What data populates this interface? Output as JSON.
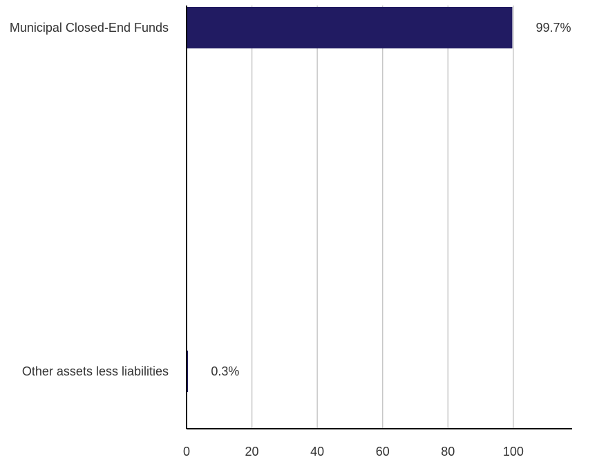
{
  "chart_data": {
    "type": "bar",
    "orientation": "horizontal",
    "categories": [
      "Municipal Closed-End Funds",
      "Other assets less liabilities"
    ],
    "values": [
      99.7,
      0.3
    ],
    "value_labels": [
      "99.7%",
      "0.3%"
    ],
    "xlim": [
      0,
      118
    ],
    "xticks": [
      0,
      20,
      40,
      60,
      80,
      100
    ],
    "xtick_labels": [
      "0",
      "20",
      "40",
      "60",
      "80",
      "100"
    ],
    "grid": "vertical",
    "legend": "none",
    "colors": {
      "bar": "#211b62",
      "grid": "#c8c8c8",
      "axis": "#000000",
      "text": "#333333"
    }
  }
}
